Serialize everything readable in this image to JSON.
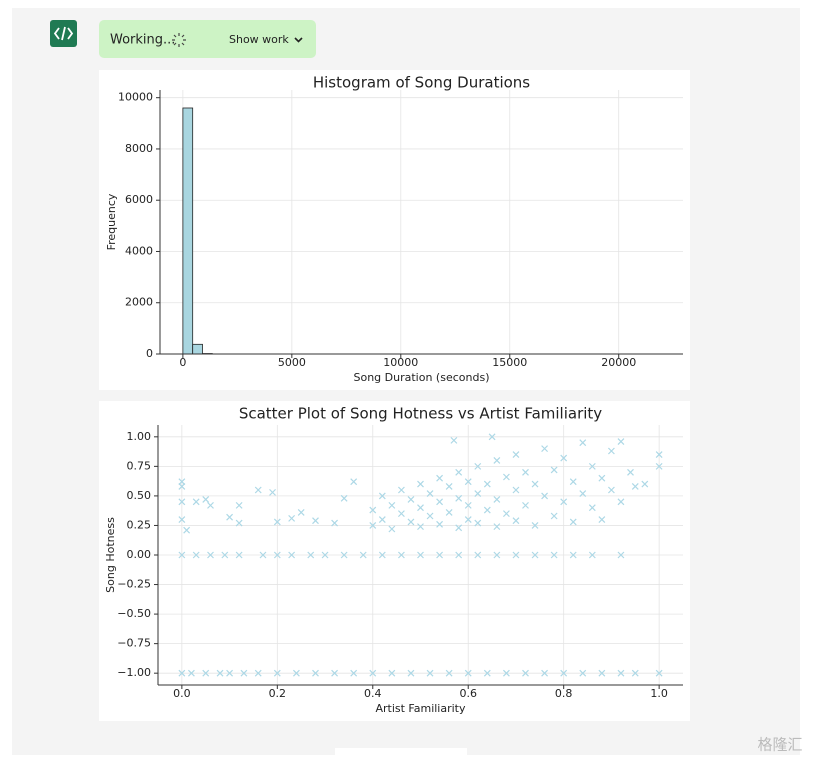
{
  "ui": {
    "status": "Working...",
    "button": "Show work",
    "watermark": "格隆汇"
  },
  "chart_data": [
    {
      "type": "histogram",
      "title": "Histogram of Song Durations",
      "x_label": "Song Duration (seconds)",
      "y_label": "Frequency",
      "bins": [
        0,
        450,
        900,
        1350,
        1800,
        2250,
        2700,
        3150,
        3600,
        4050,
        4500,
        4950,
        5400,
        5850,
        6300,
        6750,
        7200,
        7650,
        8100,
        8550,
        9000,
        9450,
        9900,
        10350,
        10800,
        11250,
        11700,
        12150,
        12600,
        13050,
        13500,
        13950,
        14400,
        14850,
        15300,
        15750,
        16200,
        16650,
        17100,
        17550,
        18000,
        18450,
        18900,
        19350,
        19800,
        20250,
        20700,
        21150,
        21600,
        22050,
        22500
      ],
      "values": [
        9598,
        378,
        18,
        3,
        1,
        0,
        0,
        0,
        0,
        0,
        0,
        0,
        0,
        0,
        0,
        0,
        0,
        0,
        0,
        0,
        0,
        0,
        0,
        0,
        0,
        0,
        0,
        0,
        0,
        0,
        0,
        0,
        0,
        0,
        0,
        0,
        0,
        0,
        0,
        0,
        0,
        0,
        0,
        0,
        0,
        0,
        0,
        0,
        0,
        1
      ],
      "color": "#a9d6e0",
      "edge_color": "#222222",
      "xlim": [
        -1050,
        22950
      ],
      "xticks": [
        0,
        5000,
        10000,
        15000,
        20000
      ],
      "ylim": [
        0,
        10300
      ],
      "yticks": [
        0,
        2000,
        4000,
        6000,
        8000,
        10000
      ],
      "grid": true
    },
    {
      "type": "scatter",
      "title": "Scatter Plot of Song Hotness vs Artist Familiarity",
      "x_label": "Artist Familiarity",
      "y_label": "Song Hotness",
      "marker": "x",
      "color": "#add8e6",
      "x": [
        0.0,
        0.02,
        0.05,
        0.08,
        0.1,
        0.13,
        0.16,
        0.2,
        0.24,
        0.28,
        0.32,
        0.36,
        0.4,
        0.44,
        0.48,
        0.52,
        0.56,
        0.6,
        0.64,
        0.68,
        0.72,
        0.76,
        0.8,
        0.84,
        0.88,
        0.92,
        0.95,
        1.0,
        0.0,
        0.03,
        0.06,
        0.09,
        0.12,
        0.17,
        0.2,
        0.23,
        0.27,
        0.3,
        0.34,
        0.38,
        0.42,
        0.46,
        0.5,
        0.54,
        0.58,
        0.62,
        0.66,
        0.7,
        0.74,
        0.78,
        0.82,
        0.86,
        0.92,
        0.0,
        0.0,
        0.0,
        0.0,
        0.01,
        0.03,
        0.05,
        0.06,
        0.1,
        0.12,
        0.12,
        0.16,
        0.19,
        0.2,
        0.23,
        0.25,
        0.28,
        0.32,
        0.34,
        0.36,
        0.4,
        0.4,
        0.42,
        0.42,
        0.44,
        0.44,
        0.46,
        0.46,
        0.48,
        0.48,
        0.5,
        0.5,
        0.5,
        0.52,
        0.52,
        0.54,
        0.54,
        0.54,
        0.56,
        0.56,
        0.58,
        0.58,
        0.58,
        0.6,
        0.6,
        0.6,
        0.62,
        0.62,
        0.62,
        0.64,
        0.64,
        0.66,
        0.66,
        0.66,
        0.68,
        0.68,
        0.7,
        0.7,
        0.7,
        0.72,
        0.72,
        0.74,
        0.74,
        0.76,
        0.76,
        0.78,
        0.78,
        0.8,
        0.8,
        0.82,
        0.82,
        0.84,
        0.84,
        0.86,
        0.86,
        0.88,
        0.88,
        0.9,
        0.9,
        0.92,
        0.92,
        0.94,
        0.95,
        0.97,
        1.0,
        1.0,
        0.65,
        0.57
      ],
      "values": [
        -1,
        -1,
        -1,
        -1,
        -1,
        -1,
        -1,
        -1,
        -1,
        -1,
        -1,
        -1,
        -1,
        -1,
        -1,
        -1,
        -1,
        -1,
        -1,
        -1,
        -1,
        -1,
        -1,
        -1,
        -1,
        -1,
        -1,
        -1,
        0,
        0,
        0,
        0,
        0,
        0,
        0,
        0,
        0,
        0,
        0,
        0,
        0,
        0,
        0,
        0,
        0,
        0,
        0,
        0,
        0,
        0,
        0,
        0,
        0,
        0.62,
        0.58,
        0.45,
        0.3,
        0.21,
        0.45,
        0.47,
        0.42,
        0.32,
        0.27,
        0.42,
        0.55,
        0.53,
        0.28,
        0.31,
        0.36,
        0.29,
        0.27,
        0.48,
        0.62,
        0.25,
        0.38,
        0.3,
        0.5,
        0.22,
        0.42,
        0.35,
        0.55,
        0.28,
        0.47,
        0.24,
        0.4,
        0.6,
        0.33,
        0.52,
        0.26,
        0.45,
        0.65,
        0.36,
        0.58,
        0.23,
        0.48,
        0.7,
        0.3,
        0.42,
        0.62,
        0.27,
        0.52,
        0.75,
        0.38,
        0.6,
        0.24,
        0.47,
        0.8,
        0.35,
        0.66,
        0.29,
        0.55,
        0.85,
        0.42,
        0.7,
        0.25,
        0.6,
        0.5,
        0.9,
        0.33,
        0.72,
        0.45,
        0.82,
        0.28,
        0.62,
        0.52,
        0.95,
        0.4,
        0.75,
        0.3,
        0.65,
        0.55,
        0.88,
        0.45,
        0.96,
        0.7,
        0.58,
        0.6,
        0.85,
        0.75,
        1.0,
        0.97
      ],
      "xlim": [
        -0.05,
        1.05
      ],
      "xticks": [
        {
          "value": 0.0,
          "label": "0.0"
        },
        0.2,
        0.4,
        0.6,
        0.8,
        {
          "value": 1.0,
          "label": "1.0"
        }
      ],
      "ylim": [
        -1.1,
        1.1
      ],
      "yticks": [
        {
          "value": -1,
          "label": "−1.00"
        },
        {
          "value": -0.75,
          "label": "−0.75"
        },
        {
          "value": -0.5,
          "label": "−0.50"
        },
        {
          "value": -0.25,
          "label": "−0.25"
        },
        {
          "value": 0,
          "label": "0.00"
        },
        {
          "value": 0.25,
          "label": "0.25"
        },
        {
          "value": 0.5,
          "label": "0.50"
        },
        {
          "value": 0.75,
          "label": "0.75"
        },
        {
          "value": 1,
          "label": "1.00"
        }
      ],
      "grid": true
    }
  ]
}
